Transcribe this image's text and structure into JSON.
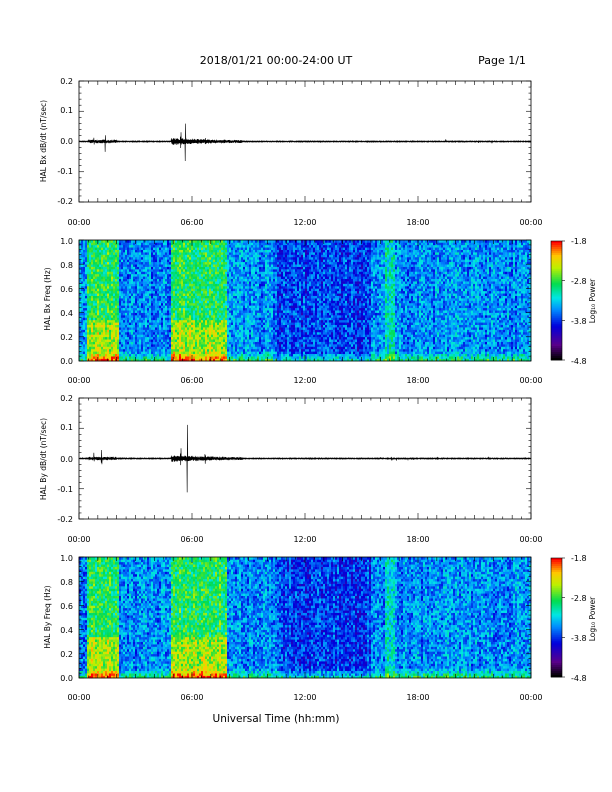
{
  "header": {
    "title": "2018/01/21  00:00-24:00 UT",
    "page": "Page 1/1"
  },
  "chart_data": [
    {
      "type": "line",
      "ylabel": "HAL Bx dB/dt (nT/sec)",
      "ylim": [
        -0.2,
        0.2
      ],
      "yticks": [
        "0.2",
        "0.1",
        "0.0",
        "-0.1",
        "-0.2"
      ],
      "xlim": [
        "00:00",
        "24:00"
      ],
      "xticks": [
        "00:00",
        "06:00",
        "12:00",
        "18:00",
        "00:00"
      ],
      "grid": false,
      "events": [
        {
          "t": 0.8,
          "amp": 0.022
        },
        {
          "t": 1.4,
          "amp": 0.048
        },
        {
          "t": 5.4,
          "amp": 0.04
        },
        {
          "t": 5.65,
          "amp": 0.105
        },
        {
          "t": 6.7,
          "amp": 0.012
        }
      ]
    },
    {
      "type": "heatmap",
      "ylabel": "HAL Bx Freq (Hz)",
      "ylim": [
        0.0,
        1.0
      ],
      "yticks": [
        "1.0",
        "0.8",
        "0.6",
        "0.4",
        "0.2",
        "0.0"
      ],
      "xlim": [
        "00:00",
        "24:00"
      ],
      "xticks": [
        "00:00",
        "06:00",
        "12:00",
        "18:00",
        "00:00"
      ],
      "colorbar": {
        "label": "Log₁₀ Power",
        "range": [
          -4.8,
          -1.8
        ],
        "ticks": [
          "-1.8",
          "-2.8",
          "-3.8",
          "-4.8"
        ]
      },
      "bright_intervals_hours": [
        [
          0.4,
          2.1
        ],
        [
          4.9,
          7.9
        ],
        [
          16.3,
          16.8
        ]
      ]
    },
    {
      "type": "line",
      "ylabel": "HAL By dB/dt (nT/sec)",
      "ylim": [
        -0.2,
        0.2
      ],
      "yticks": [
        "0.2",
        "0.1",
        "0.0",
        "-0.1",
        "-0.2"
      ],
      "xlim": [
        "00:00",
        "24:00"
      ],
      "xticks": [
        "00:00",
        "06:00",
        "12:00",
        "18:00",
        "00:00"
      ],
      "grid": false,
      "events": [
        {
          "t": 0.8,
          "amp": 0.022
        },
        {
          "t": 1.2,
          "amp": 0.035
        },
        {
          "t": 5.4,
          "amp": 0.04
        },
        {
          "t": 5.75,
          "amp": 0.12
        },
        {
          "t": 6.7,
          "amp": 0.02
        },
        {
          "t": 16.6,
          "amp": 0.01
        }
      ]
    },
    {
      "type": "heatmap",
      "ylabel": "HAL By Freq (Hz)",
      "ylim": [
        0.0,
        1.0
      ],
      "yticks": [
        "1.0",
        "0.8",
        "0.6",
        "0.4",
        "0.2",
        "0.0"
      ],
      "xlim": [
        "00:00",
        "24:00"
      ],
      "xticks": [
        "00:00",
        "06:00",
        "12:00",
        "18:00",
        "00:00"
      ],
      "colorbar": {
        "label": "Log₁₀ Power",
        "range": [
          -4.8,
          -1.8
        ],
        "ticks": [
          "-1.8",
          "-2.8",
          "-3.8",
          "-4.8"
        ]
      },
      "bright_intervals_hours": [
        [
          0.4,
          2.1
        ],
        [
          4.9,
          7.9
        ],
        [
          16.3,
          16.8
        ]
      ]
    }
  ],
  "xlabel": "Universal Time (hh:mm)"
}
